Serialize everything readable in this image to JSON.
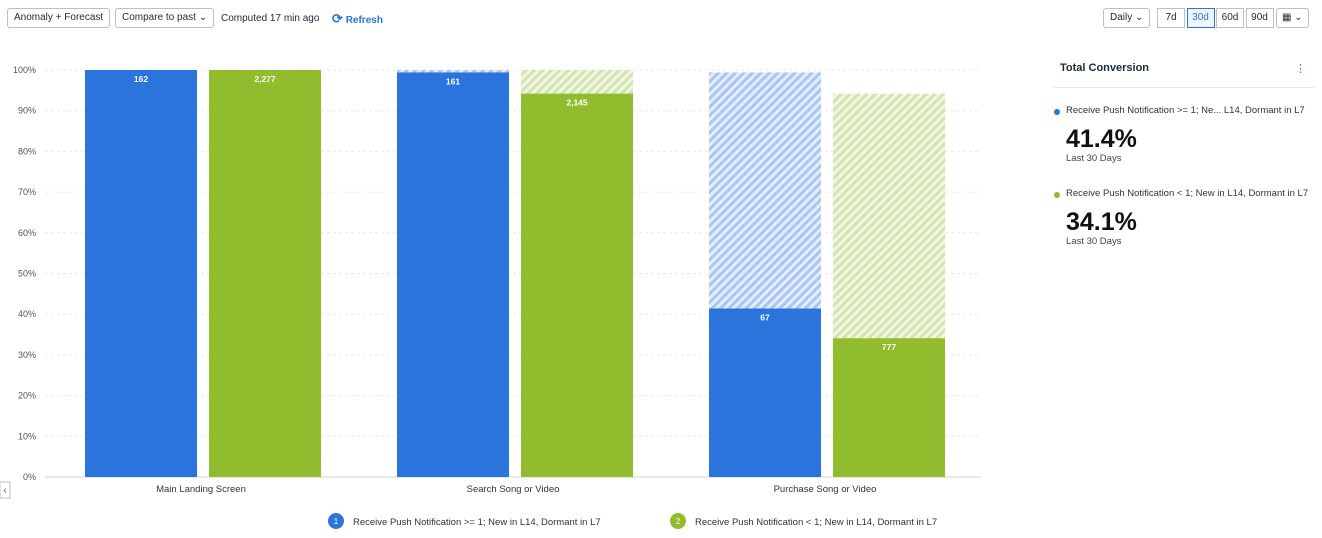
{
  "toolbar": {
    "anomaly": "Anomaly + Forecast",
    "compare": "Compare to past",
    "computed": "Computed 17 min ago",
    "refresh": "Refresh",
    "interval": "Daily",
    "ranges": [
      "7d",
      "30d",
      "60d",
      "90d"
    ],
    "selected_range": "30d"
  },
  "summary": {
    "title": "Total Conversion",
    "items": [
      {
        "name": "Receive Push Notification >= 1; Ne...  L14, Dormant in L7",
        "value": "41.4%",
        "period": "Last 30 Days"
      },
      {
        "name": "Receive Push Notification < 1; New in L14, Dormant in L7",
        "value": "34.1%",
        "period": "Last 30 Days"
      }
    ]
  },
  "chart_data": {
    "type": "funnel-bar",
    "categories": [
      "Main Landing Screen",
      "Search Song or Video",
      "Purchase Song or Video"
    ],
    "series": [
      {
        "name": "Receive Push Notification >= 1; New in L14, Dormant in L7",
        "color": "#2a74dc",
        "values": [
          100,
          99.4,
          41.4
        ],
        "count_labels": [
          "162",
          "161",
          "67"
        ]
      },
      {
        "name": "Receive Push Notification < 1; New in L14, Dormant in L7",
        "color": "#90bc2e",
        "values": [
          100,
          94.2,
          34.1
        ],
        "count_labels": [
          "2,277",
          "2,145",
          "777"
        ]
      }
    ],
    "legend_index_labels": [
      "1",
      "2"
    ],
    "ylim": [
      0,
      100
    ],
    "yticks": [
      {
        "value": 0,
        "label": "0%"
      },
      {
        "value": 10,
        "label": "10%"
      },
      {
        "value": 20,
        "label": "20%"
      },
      {
        "value": 30,
        "label": "30%"
      },
      {
        "value": 40,
        "label": "40%"
      },
      {
        "value": 50,
        "label": "50%"
      },
      {
        "value": 60,
        "label": "60%"
      },
      {
        "value": 70,
        "label": "70%"
      },
      {
        "value": 80,
        "label": "80%"
      },
      {
        "value": 90,
        "label": "90%"
      },
      {
        "value": 100,
        "label": "100%"
      }
    ],
    "grid": true
  }
}
